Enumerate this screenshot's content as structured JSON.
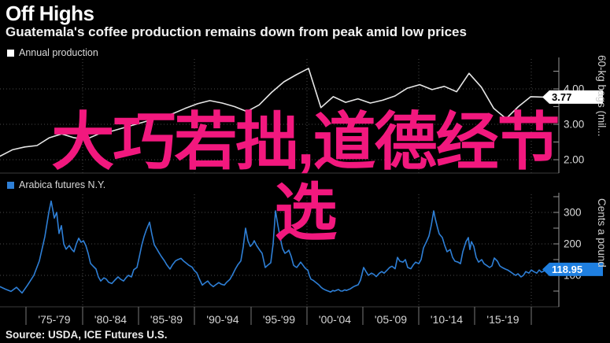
{
  "header": {
    "title": "Off Highs",
    "subtitle": "Guatemala's coffee production remains down from peak amid low prices"
  },
  "overlay": {
    "line1": "大巧若拙,道德经节",
    "line2": "选",
    "color": "#f2187e"
  },
  "source": "Source: USDA, ICE Futures U.S.",
  "x_axis": {
    "categories": [
      "'75-'79",
      "'80-'84",
      "'85-'89",
      "'90-'94",
      "'95-'99",
      "'00-'04",
      "'05-'09",
      "'10-'14",
      "'15-'19"
    ],
    "tick_positions": [
      33,
      105,
      176,
      247,
      319,
      390,
      461,
      532,
      603,
      675
    ]
  },
  "chart_data": [
    {
      "type": "line",
      "legend": "Annual production",
      "legend_color": "#ffffff",
      "line_color": "#e6e6e6",
      "ylabel": "60-kg bags (mil...",
      "ytick_labels": [
        "4.00",
        "3.00",
        "2.00"
      ],
      "ytick_values": [
        4.0,
        3.0,
        2.0
      ],
      "minor_tick_values": [
        4.5,
        4.0,
        3.5,
        3.0,
        2.5,
        2.0
      ],
      "ylim": [
        1.6,
        4.9
      ],
      "last_label": "3.77",
      "last_value": 3.77,
      "x_range": "1975-2019",
      "values": [
        2.1,
        2.28,
        2.36,
        2.4,
        2.62,
        2.73,
        2.62,
        2.58,
        2.73,
        2.8,
        2.9,
        3.0,
        3.1,
        3.2,
        3.3,
        3.45,
        3.58,
        3.67,
        3.6,
        3.5,
        3.36,
        3.55,
        3.9,
        4.2,
        4.4,
        4.58,
        3.47,
        3.78,
        3.62,
        3.72,
        3.6,
        3.68,
        3.8,
        4.02,
        4.12,
        3.98,
        4.07,
        3.92,
        4.44,
        4.05,
        3.45,
        3.16,
        3.5,
        3.78,
        3.77
      ]
    },
    {
      "type": "line",
      "legend": "Arabica futures N.Y.",
      "legend_color": "#2e7fd6",
      "line_color": "#2e7fd6",
      "badge_color": "#1f7fe0",
      "ylabel": "Cents a pound",
      "ytick_labels": [
        "300",
        "200",
        "100"
      ],
      "ytick_values": [
        300,
        200,
        100
      ],
      "minor_tick_values": [
        350,
        300,
        250,
        200,
        150,
        100,
        50
      ],
      "ylim": [
        40,
        360
      ],
      "last_label": "118.95",
      "last_value": 118.95,
      "x_range": "1975-2020",
      "points": [
        [
          0,
          64
        ],
        [
          7,
          56
        ],
        [
          14,
          49
        ],
        [
          21,
          62
        ],
        [
          28,
          44
        ],
        [
          35,
          69
        ],
        [
          43,
          100
        ],
        [
          50,
          146
        ],
        [
          57,
          223
        ],
        [
          62,
          300
        ],
        [
          65,
          336
        ],
        [
          69,
          282
        ],
        [
          72,
          300
        ],
        [
          75,
          233
        ],
        [
          78,
          258
        ],
        [
          81,
          200
        ],
        [
          84,
          183
        ],
        [
          88,
          195
        ],
        [
          91,
          183
        ],
        [
          94,
          175
        ],
        [
          97,
          200
        ],
        [
          100,
          218
        ],
        [
          103,
          205
        ],
        [
          106,
          210
        ],
        [
          109,
          195
        ],
        [
          112,
          170
        ],
        [
          115,
          138
        ],
        [
          118,
          130
        ],
        [
          122,
          120
        ],
        [
          125,
          95
        ],
        [
          128,
          82
        ],
        [
          132,
          92
        ],
        [
          135,
          88
        ],
        [
          138,
          78
        ],
        [
          142,
          74
        ],
        [
          146,
          85
        ],
        [
          150,
          95
        ],
        [
          153,
          88
        ],
        [
          157,
          82
        ],
        [
          160,
          92
        ],
        [
          163,
          100
        ],
        [
          167,
          95
        ],
        [
          170,
          118
        ],
        [
          174,
          125
        ],
        [
          177,
          159
        ],
        [
          180,
          195
        ],
        [
          183,
          223
        ],
        [
          186,
          245
        ],
        [
          190,
          269
        ],
        [
          193,
          230
        ],
        [
          196,
          197
        ],
        [
          199,
          185
        ],
        [
          202,
          172
        ],
        [
          205,
          160
        ],
        [
          209,
          146
        ],
        [
          212,
          133
        ],
        [
          216,
          120
        ],
        [
          219,
          133
        ],
        [
          223,
          146
        ],
        [
          226,
          150
        ],
        [
          230,
          154
        ],
        [
          233,
          146
        ],
        [
          237,
          138
        ],
        [
          240,
          132
        ],
        [
          244,
          126
        ],
        [
          247,
          115
        ],
        [
          250,
          108
        ],
        [
          253,
          90
        ],
        [
          257,
          69
        ],
        [
          260,
          75
        ],
        [
          264,
          82
        ],
        [
          267,
          72
        ],
        [
          271,
          64
        ],
        [
          274,
          70
        ],
        [
          278,
          77
        ],
        [
          281,
          72
        ],
        [
          285,
          69
        ],
        [
          288,
          78
        ],
        [
          292,
          87
        ],
        [
          295,
          100
        ],
        [
          299,
          120
        ],
        [
          302,
          133
        ],
        [
          306,
          146
        ],
        [
          309,
          190
        ],
        [
          312,
          250
        ],
        [
          315,
          210
        ],
        [
          318,
          192
        ],
        [
          321,
          200
        ],
        [
          323,
          210
        ],
        [
          326,
          195
        ],
        [
          330,
          180
        ],
        [
          333,
          170
        ],
        [
          337,
          125
        ],
        [
          340,
          132
        ],
        [
          344,
          140
        ],
        [
          347,
          200
        ],
        [
          350,
          305
        ],
        [
          353,
          260
        ],
        [
          356,
          220
        ],
        [
          359,
          185
        ],
        [
          362,
          170
        ],
        [
          365,
          175
        ],
        [
          367,
          180
        ],
        [
          370,
          160
        ],
        [
          373,
          132
        ],
        [
          375,
          128
        ],
        [
          377,
          125
        ],
        [
          380,
          135
        ],
        [
          382,
          142
        ],
        [
          385,
          132
        ],
        [
          387,
          125
        ],
        [
          389,
          120
        ],
        [
          391,
          117
        ],
        [
          393,
          100
        ],
        [
          395,
          88
        ],
        [
          398,
          84
        ],
        [
          400,
          80
        ],
        [
          403,
          74
        ],
        [
          405,
          70
        ],
        [
          408,
          62
        ],
        [
          410,
          58
        ],
        [
          413,
          54
        ],
        [
          415,
          52
        ],
        [
          418,
          49
        ],
        [
          420,
          47
        ],
        [
          423,
          52
        ],
        [
          425,
          50
        ],
        [
          428,
          53
        ],
        [
          430,
          55
        ],
        [
          433,
          50
        ],
        [
          435,
          50
        ],
        [
          438,
          54
        ],
        [
          440,
          52
        ],
        [
          443,
          55
        ],
        [
          445,
          57
        ],
        [
          448,
          62
        ],
        [
          450,
          65
        ],
        [
          453,
          68
        ],
        [
          455,
          70
        ],
        [
          458,
          85
        ],
        [
          462,
          125
        ],
        [
          465,
          112
        ],
        [
          468,
          100
        ],
        [
          472,
          107
        ],
        [
          475,
          103
        ],
        [
          478,
          96
        ],
        [
          482,
          107
        ],
        [
          485,
          112
        ],
        [
          488,
          107
        ],
        [
          492,
          117
        ],
        [
          495,
          125
        ],
        [
          498,
          129
        ],
        [
          502,
          121
        ],
        [
          505,
          157
        ],
        [
          508,
          145
        ],
        [
          512,
          142
        ],
        [
          515,
          150
        ],
        [
          518,
          125
        ],
        [
          522,
          121
        ],
        [
          525,
          133
        ],
        [
          528,
          142
        ],
        [
          532,
          137
        ],
        [
          535,
          150
        ],
        [
          538,
          187
        ],
        [
          542,
          208
        ],
        [
          545,
          225
        ],
        [
          548,
          260
        ],
        [
          551,
          305
        ],
        [
          553,
          280
        ],
        [
          556,
          250
        ],
        [
          558,
          232
        ],
        [
          562,
          220
        ],
        [
          565,
          195
        ],
        [
          568,
          175
        ],
        [
          572,
          182
        ],
        [
          575,
          157
        ],
        [
          578,
          145
        ],
        [
          582,
          142
        ],
        [
          585,
          137
        ],
        [
          588,
          175
        ],
        [
          592,
          207
        ],
        [
          595,
          220
        ],
        [
          597,
          182
        ],
        [
          599,
          207
        ],
        [
          602,
          192
        ],
        [
          605,
          157
        ],
        [
          608,
          142
        ],
        [
          612,
          150
        ],
        [
          615,
          137
        ],
        [
          618,
          132
        ],
        [
          622,
          125
        ],
        [
          625,
          130
        ],
        [
          628,
          155
        ],
        [
          632,
          145
        ],
        [
          635,
          130
        ],
        [
          638,
          125
        ],
        [
          642,
          120
        ],
        [
          645,
          117
        ],
        [
          648,
          112
        ],
        [
          652,
          105
        ],
        [
          655,
          100
        ],
        [
          658,
          105
        ],
        [
          662,
          95
        ],
        [
          665,
          100
        ],
        [
          668,
          112
        ],
        [
          672,
          107
        ],
        [
          675,
          117
        ],
        [
          678,
          112
        ],
        [
          682,
          107
        ],
        [
          685,
          117
        ],
        [
          688,
          110
        ],
        [
          692,
          115
        ],
        [
          695,
          112
        ],
        [
          698,
          118
        ],
        [
          702,
          116
        ],
        [
          706,
          119
        ]
      ]
    }
  ]
}
